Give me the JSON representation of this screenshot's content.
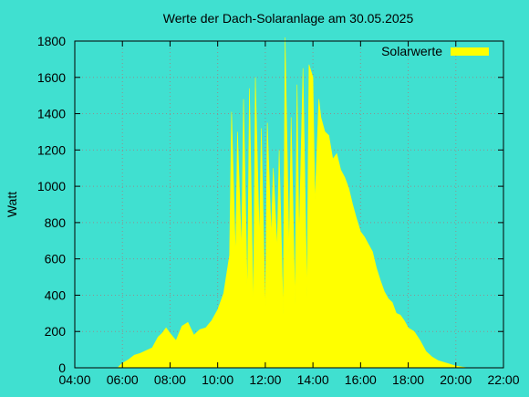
{
  "chart_data": {
    "type": "area",
    "title": "Werte der Dach-Solaranlage am 30.05.2025",
    "xlabel": "",
    "ylabel": "Watt",
    "xlim": [
      "04:00",
      "22:00"
    ],
    "ylim": [
      0,
      1800
    ],
    "grid": true,
    "legend_position": "top-right",
    "x_tick_labels": [
      "04:00",
      "06:00",
      "08:00",
      "10:00",
      "12:00",
      "14:00",
      "16:00",
      "18:00",
      "20:00",
      "22:00"
    ],
    "y_tick_labels": [
      "0",
      "200",
      "400",
      "600",
      "800",
      "1000",
      "1200",
      "1400",
      "1600",
      "1800"
    ],
    "series": [
      {
        "name": "Solarwerte",
        "color": "#ffff00",
        "x": [
          "05:50",
          "06:00",
          "06:15",
          "06:30",
          "06:45",
          "07:00",
          "07:15",
          "07:30",
          "07:40",
          "07:50",
          "08:00",
          "08:15",
          "08:30",
          "08:45",
          "09:00",
          "09:15",
          "09:30",
          "09:45",
          "10:00",
          "10:15",
          "10:30",
          "10:35",
          "10:45",
          "10:50",
          "11:00",
          "11:05",
          "11:15",
          "11:20",
          "11:30",
          "11:35",
          "11:45",
          "11:50",
          "12:00",
          "12:05",
          "12:15",
          "12:20",
          "12:30",
          "12:35",
          "12:45",
          "12:50",
          "13:00",
          "13:05",
          "13:15",
          "13:20",
          "13:25",
          "13:35",
          "13:45",
          "13:50",
          "14:00",
          "14:05",
          "14:15",
          "14:20",
          "14:30",
          "14:40",
          "14:50",
          "15:00",
          "15:10",
          "15:20",
          "15:30",
          "15:40",
          "15:50",
          "16:00",
          "16:10",
          "16:20",
          "16:30",
          "16:40",
          "16:50",
          "17:00",
          "17:10",
          "17:20",
          "17:30",
          "17:40",
          "17:50",
          "18:00",
          "18:15",
          "18:30",
          "18:45",
          "19:00",
          "19:15",
          "19:30",
          "19:45",
          "20:00",
          "20:15",
          "20:30",
          "20:45",
          "21:00",
          "21:15"
        ],
        "values": [
          5,
          25,
          45,
          70,
          80,
          95,
          110,
          170,
          190,
          220,
          190,
          150,
          230,
          250,
          180,
          210,
          220,
          260,
          320,
          410,
          620,
          1410,
          600,
          1300,
          640,
          1480,
          380,
          1540,
          300,
          1600,
          700,
          1320,
          290,
          1350,
          720,
          1100,
          650,
          1200,
          290,
          1820,
          620,
          1380,
          350,
          1560,
          700,
          1650,
          380,
          1670,
          1600,
          900,
          1480,
          1380,
          1300,
          1280,
          1150,
          1180,
          1090,
          1050,
          990,
          900,
          820,
          750,
          720,
          680,
          640,
          550,
          480,
          420,
          380,
          360,
          300,
          290,
          260,
          220,
          200,
          150,
          90,
          60,
          40,
          30,
          20,
          10,
          5,
          0,
          0,
          0,
          0
        ]
      }
    ]
  }
}
